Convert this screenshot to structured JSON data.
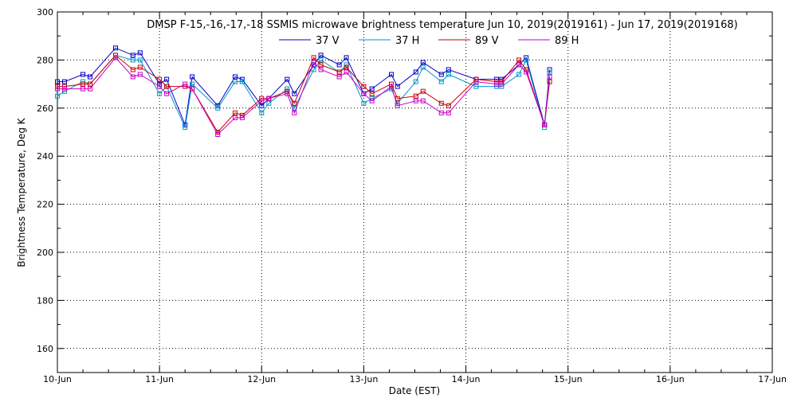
{
  "chart_data": {
    "type": "line",
    "title": "DMSP F-15,-16,-17,-18 SSMIS microwave brightness temperature Jun 10, 2019(2019161) - Jun 17, 2019(2019168)",
    "xlabel": "Date (EST)",
    "ylabel": "Brightness Temperature, Deg K",
    "xlim": [
      0,
      7
    ],
    "ylim": [
      150,
      300
    ],
    "grid": true,
    "legend_position": "top",
    "x_ticks": [
      {
        "value": 0,
        "label": "10-Jun"
      },
      {
        "value": 1,
        "label": "11-Jun"
      },
      {
        "value": 2,
        "label": "12-Jun"
      },
      {
        "value": 3,
        "label": "13-Jun"
      },
      {
        "value": 4,
        "label": "14-Jun"
      },
      {
        "value": 5,
        "label": "15-Jun"
      },
      {
        "value": 6,
        "label": "16-Jun"
      },
      {
        "value": 7,
        "label": "17-Jun"
      }
    ],
    "y_ticks": [
      {
        "value": 160,
        "label": "160"
      },
      {
        "value": 180,
        "label": "180"
      },
      {
        "value": 200,
        "label": "200"
      },
      {
        "value": 220,
        "label": "220"
      },
      {
        "value": 240,
        "label": "240"
      },
      {
        "value": 260,
        "label": "260"
      },
      {
        "value": 280,
        "label": "280"
      },
      {
        "value": 300,
        "label": "300"
      }
    ],
    "x": [
      0.0,
      0.07,
      0.25,
      0.32,
      0.57,
      0.74,
      0.81,
      1.0,
      1.07,
      1.25,
      1.32,
      1.57,
      1.74,
      1.81,
      2.0,
      2.07,
      2.25,
      2.32,
      2.51,
      2.58,
      2.76,
      2.83,
      3.0,
      3.08,
      3.27,
      3.33,
      3.51,
      3.58,
      3.76,
      3.83,
      4.1,
      4.3,
      4.35,
      4.52,
      4.59,
      4.77,
      4.82
    ],
    "series": [
      {
        "name": "37 V",
        "color": "#0000c8",
        "values": [
          271,
          271,
          274,
          273,
          285,
          282,
          283,
          270,
          272,
          253,
          273,
          261,
          273,
          272,
          261,
          264,
          272,
          266,
          278,
          282,
          278,
          281,
          266,
          268,
          274,
          269,
          275,
          279,
          274,
          276,
          272,
          272,
          272,
          278,
          281,
          253,
          276
        ]
      },
      {
        "name": "37 H",
        "color": "#0096c8",
        "values": [
          265,
          267,
          271,
          270,
          282,
          280,
          280,
          266,
          269,
          252,
          270,
          260,
          271,
          271,
          258,
          262,
          268,
          260,
          276,
          280,
          275,
          278,
          262,
          264,
          268,
          262,
          271,
          277,
          271,
          274,
          269,
          269,
          269,
          274,
          280,
          252,
          275
        ]
      },
      {
        "name": "89 V",
        "color": "#c80000",
        "values": [
          269,
          269,
          270,
          270,
          282,
          276,
          277,
          272,
          269,
          269,
          268,
          250,
          258,
          257,
          264,
          264,
          267,
          262,
          281,
          278,
          275,
          277,
          269,
          266,
          270,
          264,
          265,
          267,
          262,
          261,
          272,
          271,
          271,
          280,
          276,
          253,
          271
        ]
      },
      {
        "name": "89 H",
        "color": "#c800c8",
        "values": [
          268,
          268,
          268,
          268,
          281,
          273,
          274,
          269,
          266,
          270,
          268,
          249,
          256,
          256,
          263,
          264,
          266,
          258,
          279,
          276,
          273,
          275,
          266,
          263,
          269,
          261,
          263,
          263,
          258,
          258,
          271,
          270,
          270,
          278,
          275,
          253,
          273
        ]
      }
    ]
  }
}
